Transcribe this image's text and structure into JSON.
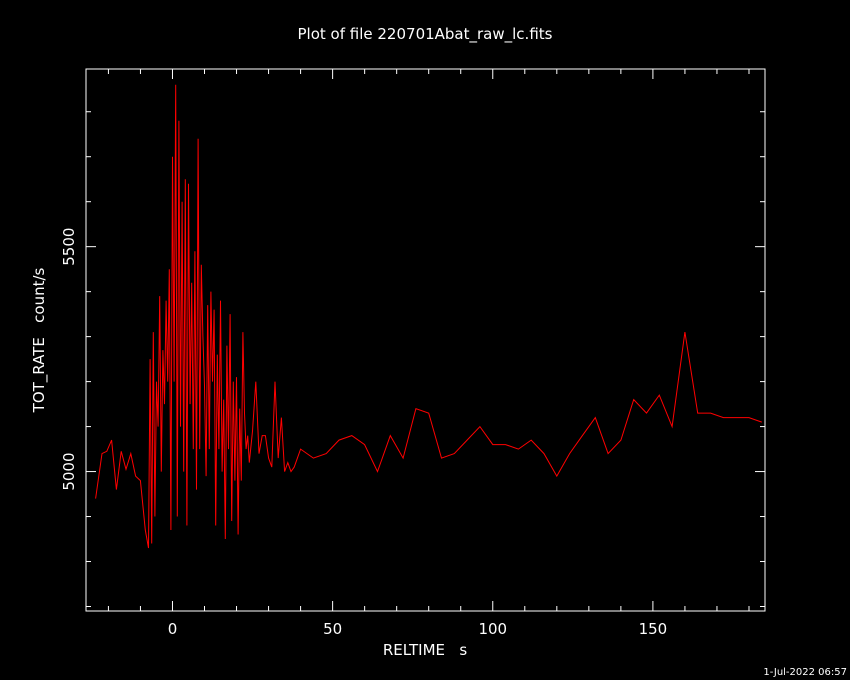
{
  "chart_data": {
    "type": "line",
    "title": "Plot of file 220701Abat_raw_lc.fits",
    "xlabel": "RELTIME   s",
    "ylabel": "TOT_RATE   count/s",
    "xlim": [
      -27,
      185
    ],
    "ylim": [
      4690,
      5895
    ],
    "x_ticks": [
      0,
      50,
      100,
      150
    ],
    "y_ticks": [
      5000,
      5500
    ],
    "grid": false,
    "legend": "none",
    "line_color": "#ff0000",
    "axis_color": "#ffffff",
    "series": [
      {
        "x": [
          -24.0,
          -22.0,
          -20.5,
          -19.0,
          -17.5,
          -16.0,
          -14.5,
          -13.0,
          -11.5,
          -10.0,
          -8.5,
          -7.5,
          -7.0,
          -6.5,
          -6.0,
          -5.5,
          -5.0,
          -4.5,
          -4.0,
          -3.5,
          -3.0,
          -2.5,
          -2.0,
          -1.5,
          -1.0,
          -0.5,
          0.0,
          0.5,
          1.0,
          1.5,
          2.0,
          2.5,
          3.0,
          3.5,
          4.0,
          4.5,
          5.0,
          5.5,
          6.0,
          6.5,
          7.0,
          7.5,
          8.0,
          8.5,
          9.0,
          9.5,
          10.0,
          10.5,
          11.0,
          11.5,
          12.0,
          12.5,
          13.0,
          13.5,
          14.0,
          14.5,
          15.0,
          15.5,
          16.0,
          16.5,
          17.0,
          17.5,
          18.0,
          18.5,
          19.0,
          19.5,
          20.0,
          20.5,
          21.0,
          21.5,
          22.0,
          22.5,
          23.0,
          23.5,
          24.0,
          25.0,
          26.0,
          27.0,
          28.0,
          29.0,
          30.0,
          31.0,
          32.0,
          33.0,
          34.0,
          35.0,
          36.0,
          37.0,
          38.0,
          40.0,
          44.0,
          48.0,
          52.0,
          56.0,
          60.0,
          64.0,
          68.0,
          72.0,
          76.0,
          80.0,
          84.0,
          88.0,
          92.0,
          96.0,
          100.0,
          104.0,
          108.0,
          112.0,
          116.0,
          120.0,
          124.0,
          128.0,
          132.0,
          136.0,
          140.0,
          144.0,
          148.0,
          152.0,
          156.0,
          160.0,
          164.0,
          168.0,
          172.0,
          176.0,
          180.0,
          184.0
        ],
        "y": [
          4940,
          5040,
          5045,
          5070,
          4960,
          5045,
          5005,
          5040,
          4990,
          4980,
          4870,
          4830,
          5250,
          4840,
          5310,
          4900,
          5200,
          5100,
          5390,
          5000,
          5270,
          5150,
          5380,
          5200,
          5450,
          4870,
          5700,
          5200,
          5860,
          4900,
          5780,
          5100,
          5600,
          5000,
          5650,
          4880,
          5640,
          5150,
          5420,
          5050,
          5490,
          4960,
          5740,
          5050,
          5460,
          5300,
          5190,
          4990,
          5370,
          5050,
          5400,
          5200,
          5360,
          4880,
          5260,
          5050,
          5380,
          5000,
          5160,
          4850,
          5280,
          5050,
          5350,
          4890,
          5200,
          4980,
          5210,
          4860,
          5140,
          4980,
          5310,
          5130,
          5050,
          5080,
          5020,
          5090,
          5200,
          5040,
          5080,
          5080,
          5030,
          5010,
          5200,
          5030,
          5120,
          5000,
          5020,
          5000,
          5010,
          5050,
          5030,
          5040,
          5070,
          5080,
          5060,
          5000,
          5080,
          5030,
          5140,
          5130,
          5030,
          5040,
          5070,
          5100,
          5060,
          5060,
          5050,
          5070,
          5040,
          4990,
          5040,
          5080,
          5120,
          5040,
          5070,
          5160,
          5130,
          5170,
          5100,
          5310,
          5130,
          5130,
          5120,
          5120,
          5120,
          5110
        ]
      }
    ]
  },
  "footer": {
    "timestamp": "1-Jul-2022 06:57"
  }
}
